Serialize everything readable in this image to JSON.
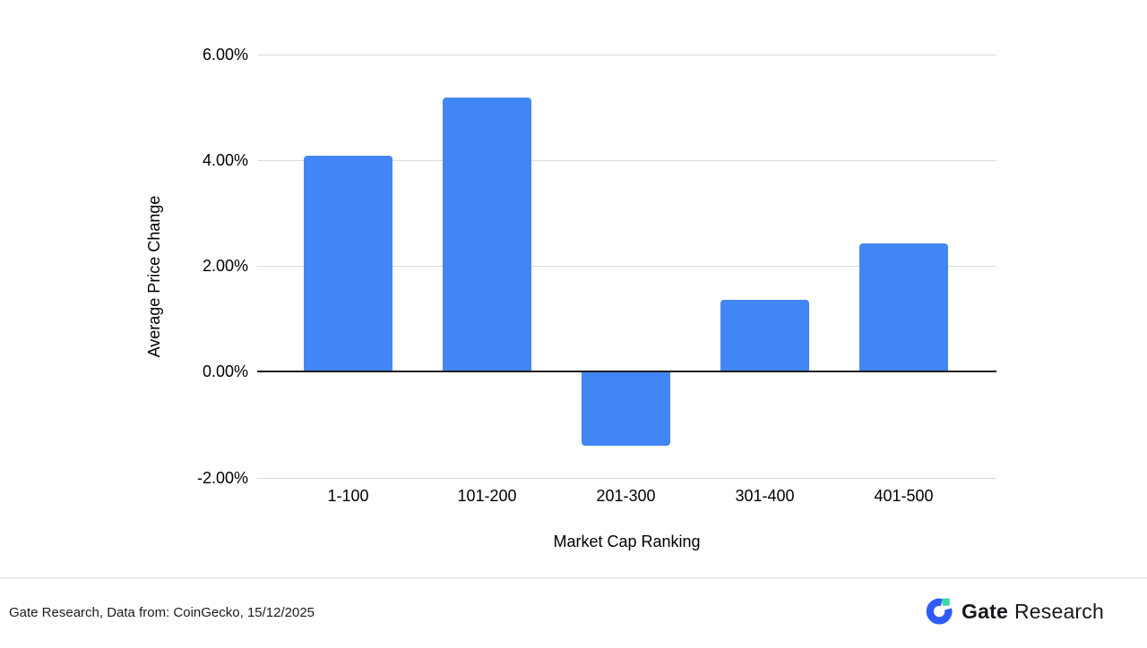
{
  "chart_data": {
    "type": "bar",
    "categories": [
      "1-100",
      "101-200",
      "201-300",
      "301-400",
      "401-500"
    ],
    "values": [
      4.08,
      5.18,
      -1.4,
      1.36,
      2.43
    ],
    "title": "",
    "xlabel": "Market Cap Ranking",
    "ylabel": "Average Price Change",
    "ylim": [
      -2,
      6
    ],
    "yticks": {
      "values": [
        6,
        4,
        2,
        0,
        -2
      ],
      "labels": [
        "6.00%",
        "4.00%",
        "2.00%",
        "0.00%",
        "-2.00%"
      ]
    },
    "grid": true,
    "legend": "none",
    "bar_color": "#4285F4",
    "grid_color": "#d9d9d9",
    "zero_line_color": "#1c1c1c"
  },
  "footer": {
    "attribution": "Gate Research, Data from: CoinGecko, 15/12/2025",
    "logo": {
      "brand_bold": "Gate",
      "brand_regular": "Research",
      "icon": "gate-circle-g-icon",
      "icon_blue": "#2E5BFF",
      "icon_green": "#3CD9A0",
      "text_color": "#17181c"
    }
  }
}
